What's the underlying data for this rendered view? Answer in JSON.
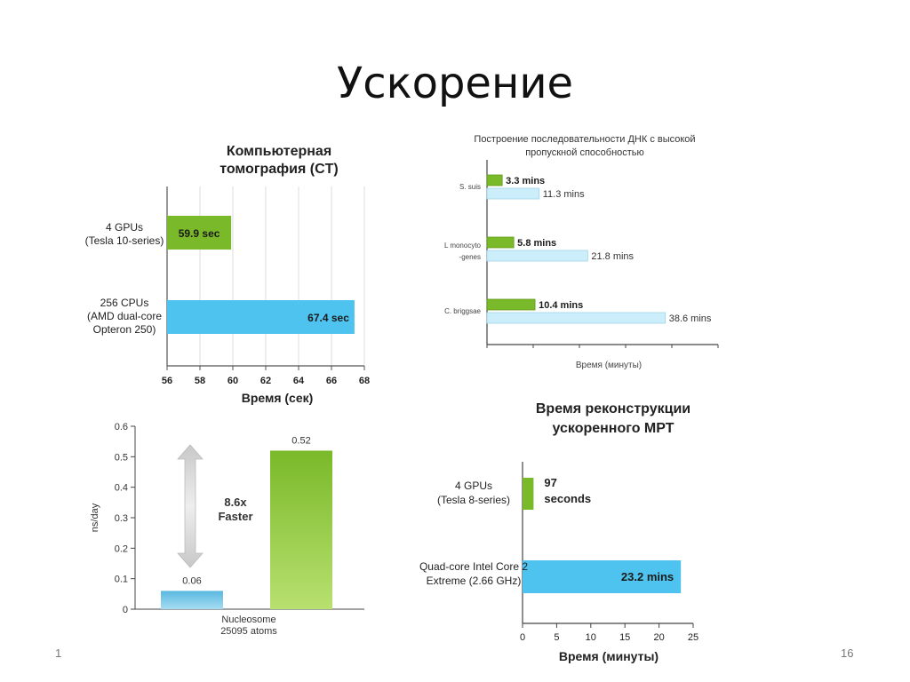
{
  "slide": {
    "title": "Ускорение",
    "number_left": "1",
    "number_right": "16"
  },
  "colors": {
    "green": "#7ab929",
    "green_light": "#a8dc58",
    "cyan": "#4fc3ef",
    "light_blue": "#cceefa"
  },
  "chart_data": [
    {
      "id": "ct",
      "type": "bar",
      "title": [
        "Компьютерная",
        "томография (CT)"
      ],
      "xlabel": "Время (сек)",
      "categories": [
        [
          "4 GPUs",
          "(Tesla 10-series)"
        ],
        [
          "256 CPUs",
          "(AMD dual-core",
          "Opteron 250)"
        ]
      ],
      "values": [
        59.9,
        67.4
      ],
      "value_labels": [
        "59.9 sec",
        "67.4 sec"
      ],
      "xlim": [
        56,
        68
      ],
      "xticks": [
        "56",
        "58",
        "60",
        "62",
        "64",
        "66",
        "68"
      ],
      "grid": true
    },
    {
      "id": "dna",
      "type": "bar",
      "title": [
        "Построение последовательности ДНК с высокой",
        "пропускной способностью"
      ],
      "xlabel": "Время (минуты)",
      "categories": [
        [
          "S. suis"
        ],
        [
          "L monocyto",
          "-genes"
        ],
        [
          "C. briggsae"
        ]
      ],
      "series": [
        {
          "values": [
            3.3,
            5.8,
            10.4
          ],
          "labels": [
            "3.3 mins",
            "5.8 mins",
            "10.4 mins"
          ]
        },
        {
          "values": [
            11.3,
            21.8,
            38.6
          ],
          "labels": [
            "11.3 mins",
            "21.8 mins",
            "38.6 mins"
          ]
        }
      ],
      "xlim": [
        0,
        50
      ]
    },
    {
      "id": "namd",
      "type": "bar",
      "ylabel": "ns/day",
      "categories": [
        [
          "Nucleosome",
          "25095 atoms"
        ]
      ],
      "series": [
        {
          "values": [
            0.06
          ],
          "labels": [
            "0.06"
          ]
        },
        {
          "values": [
            0.52
          ],
          "labels": [
            "0.52"
          ]
        }
      ],
      "annotation": [
        "8.6x",
        "Faster"
      ],
      "ylim": [
        0,
        0.6
      ],
      "yticks": [
        "0",
        "0.1",
        "0.2",
        "0.3",
        "0.4",
        "0.5",
        "0.6"
      ]
    },
    {
      "id": "mri",
      "type": "bar",
      "title": [
        "Время реконструкции",
        "ускоренного МРТ"
      ],
      "xlabel": "Время (минуты)",
      "categories": [
        [
          "4 GPUs",
          "(Tesla 8-series)"
        ],
        [
          "Quad-core Intel Core 2",
          "Extreme (2.66 GHz)"
        ]
      ],
      "values": [
        1.6167,
        23.2
      ],
      "value_labels": [
        [
          "97",
          "seconds"
        ],
        [
          "23.2 mins"
        ]
      ],
      "xlim": [
        0,
        25
      ],
      "xticks": [
        "0",
        "5",
        "10",
        "15",
        "20",
        "25"
      ]
    }
  ]
}
